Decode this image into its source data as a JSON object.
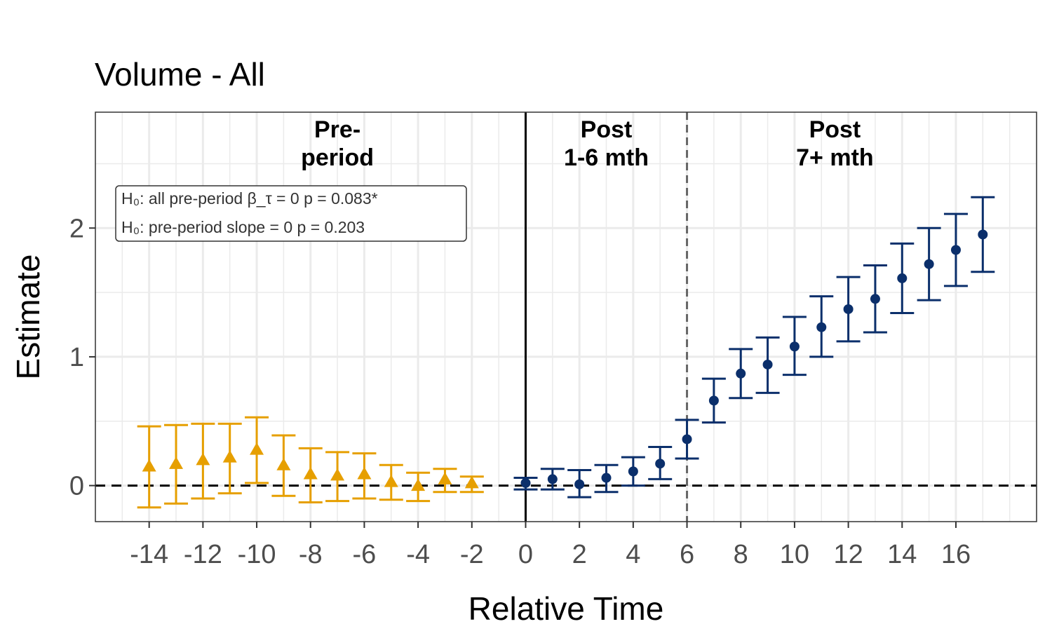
{
  "chart_data": {
    "type": "scatter",
    "title": "Volume - All",
    "xlabel": "Relative Time",
    "ylabel": "Estimate",
    "xlim": [
      -16,
      19
    ],
    "ylim": [
      -0.28,
      2.9
    ],
    "x_ticks": [
      -14,
      -12,
      -10,
      -8,
      -6,
      -4,
      -2,
      0,
      2,
      4,
      6,
      8,
      10,
      12,
      14,
      16
    ],
    "x_tick_labels": [
      "-14",
      "-12",
      "-10",
      "-8",
      "-6",
      "-4",
      "-2",
      "0",
      "2",
      "4",
      "6",
      "8",
      "10",
      "12",
      "14",
      "16"
    ],
    "y_ticks": [
      0,
      1,
      2
    ],
    "y_tick_labels": [
      "0",
      "1",
      "2"
    ],
    "grid": true,
    "reference_lines": {
      "y_zero": {
        "y": 0,
        "style": "dashed",
        "color": "#000000"
      },
      "treatment": {
        "x": 0,
        "style": "solid",
        "color": "#000000"
      },
      "split": {
        "x": 6,
        "style": "dashed",
        "color": "#666666"
      }
    },
    "region_labels": [
      {
        "lines": [
          "Pre-",
          "period"
        ],
        "x": -7
      },
      {
        "lines": [
          "Post",
          "1-6 mth"
        ],
        "x": 3
      },
      {
        "lines": [
          "Post",
          "7+ mth"
        ],
        "x": 11.5
      }
    ],
    "annotation": {
      "lines": [
        "H₀: all pre-period β_τ = 0    p = 0.083*",
        "H₀: pre-period slope = 0    p = 0.203"
      ]
    },
    "series": [
      {
        "group": "pre",
        "marker": "triangle",
        "color": "#E69F00",
        "points": [
          {
            "x": -14,
            "y": 0.15,
            "lo": -0.17,
            "hi": 0.46
          },
          {
            "x": -13,
            "y": 0.17,
            "lo": -0.14,
            "hi": 0.47
          },
          {
            "x": -12,
            "y": 0.2,
            "lo": -0.1,
            "hi": 0.48
          },
          {
            "x": -11,
            "y": 0.22,
            "lo": -0.06,
            "hi": 0.48
          },
          {
            "x": -10,
            "y": 0.28,
            "lo": 0.02,
            "hi": 0.53
          },
          {
            "x": -9,
            "y": 0.16,
            "lo": -0.08,
            "hi": 0.39
          },
          {
            "x": -8,
            "y": 0.09,
            "lo": -0.13,
            "hi": 0.29
          },
          {
            "x": -7,
            "y": 0.08,
            "lo": -0.12,
            "hi": 0.26
          },
          {
            "x": -6,
            "y": 0.09,
            "lo": -0.1,
            "hi": 0.25
          },
          {
            "x": -5,
            "y": 0.03,
            "lo": -0.11,
            "hi": 0.16
          },
          {
            "x": -4,
            "y": 0.0,
            "lo": -0.12,
            "hi": 0.1
          },
          {
            "x": -3,
            "y": 0.05,
            "lo": -0.05,
            "hi": 0.13
          },
          {
            "x": -2,
            "y": 0.02,
            "lo": -0.05,
            "hi": 0.07
          }
        ]
      },
      {
        "group": "post",
        "marker": "circle",
        "color": "#0B2F6B",
        "points": [
          {
            "x": 0,
            "y": 0.02,
            "lo": -0.03,
            "hi": 0.06
          },
          {
            "x": 1,
            "y": 0.05,
            "lo": -0.03,
            "hi": 0.13
          },
          {
            "x": 2,
            "y": 0.01,
            "lo": -0.09,
            "hi": 0.12
          },
          {
            "x": 3,
            "y": 0.06,
            "lo": -0.05,
            "hi": 0.16
          },
          {
            "x": 4,
            "y": 0.11,
            "lo": 0.0,
            "hi": 0.22
          },
          {
            "x": 5,
            "y": 0.17,
            "lo": 0.05,
            "hi": 0.3
          },
          {
            "x": 6,
            "y": 0.36,
            "lo": 0.21,
            "hi": 0.51
          },
          {
            "x": 7,
            "y": 0.66,
            "lo": 0.49,
            "hi": 0.83
          },
          {
            "x": 8,
            "y": 0.87,
            "lo": 0.68,
            "hi": 1.06
          },
          {
            "x": 9,
            "y": 0.94,
            "lo": 0.72,
            "hi": 1.15
          },
          {
            "x": 10,
            "y": 1.08,
            "lo": 0.86,
            "hi": 1.31
          },
          {
            "x": 11,
            "y": 1.23,
            "lo": 1.0,
            "hi": 1.47
          },
          {
            "x": 12,
            "y": 1.37,
            "lo": 1.12,
            "hi": 1.62
          },
          {
            "x": 13,
            "y": 1.45,
            "lo": 1.19,
            "hi": 1.71
          },
          {
            "x": 14,
            "y": 1.61,
            "lo": 1.34,
            "hi": 1.88
          },
          {
            "x": 15,
            "y": 1.72,
            "lo": 1.44,
            "hi": 2.0
          },
          {
            "x": 16,
            "y": 1.83,
            "lo": 1.55,
            "hi": 2.11
          },
          {
            "x": 17,
            "y": 1.95,
            "lo": 1.66,
            "hi": 2.24
          }
        ]
      }
    ]
  }
}
